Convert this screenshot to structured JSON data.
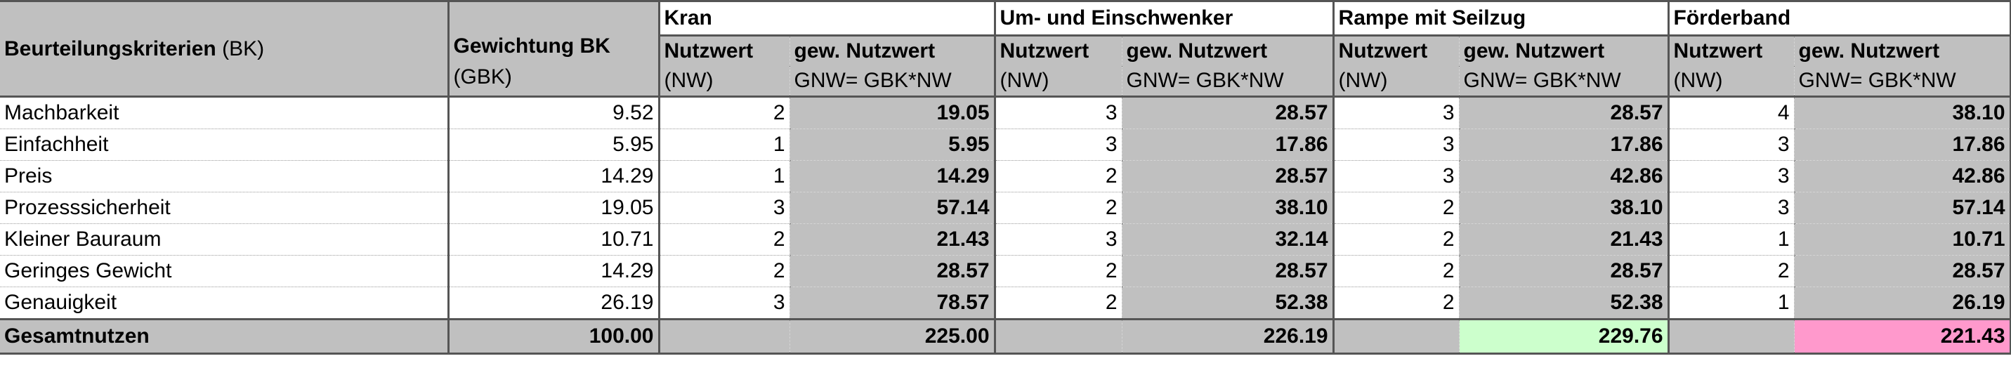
{
  "header": {
    "criteria_bold": "Beurteilungskriterien",
    "criteria_suffix": " (BK)",
    "weight_line1": "Gewichtung BK",
    "weight_line2": "(GBK)",
    "col_nw_line1": "Nutzwert",
    "col_nw_line2": "(NW)",
    "col_gnw_line1": "gew. Nutzwert",
    "col_gnw_line2": "GNW= GBK*NW"
  },
  "alternatives": [
    {
      "name": "Kran",
      "total": "225.00"
    },
    {
      "name": "Um- und Einschwenker",
      "total": "226.19"
    },
    {
      "name": "Rampe mit Seilzug",
      "total": "229.76"
    },
    {
      "name": "Förderband",
      "total": "221.43"
    }
  ],
  "rows": [
    {
      "criterion": "Machbarkeit",
      "weight": "9.52",
      "values": [
        [
          "2",
          "19.05"
        ],
        [
          "3",
          "28.57"
        ],
        [
          "3",
          "28.57"
        ],
        [
          "4",
          "38.10"
        ]
      ]
    },
    {
      "criterion": "Einfachheit",
      "weight": "5.95",
      "values": [
        [
          "1",
          "5.95"
        ],
        [
          "3",
          "17.86"
        ],
        [
          "3",
          "17.86"
        ],
        [
          "3",
          "17.86"
        ]
      ]
    },
    {
      "criterion": "Preis",
      "weight": "14.29",
      "values": [
        [
          "1",
          "14.29"
        ],
        [
          "2",
          "28.57"
        ],
        [
          "3",
          "42.86"
        ],
        [
          "3",
          "42.86"
        ]
      ]
    },
    {
      "criterion": "Prozesssicherheit",
      "weight": "19.05",
      "values": [
        [
          "3",
          "57.14"
        ],
        [
          "2",
          "38.10"
        ],
        [
          "2",
          "38.10"
        ],
        [
          "3",
          "57.14"
        ]
      ]
    },
    {
      "criterion": "Kleiner Bauraum",
      "weight": "10.71",
      "values": [
        [
          "2",
          "21.43"
        ],
        [
          "3",
          "32.14"
        ],
        [
          "2",
          "21.43"
        ],
        [
          "1",
          "10.71"
        ]
      ]
    },
    {
      "criterion": "Geringes Gewicht",
      "weight": "14.29",
      "values": [
        [
          "2",
          "28.57"
        ],
        [
          "2",
          "28.57"
        ],
        [
          "2",
          "28.57"
        ],
        [
          "2",
          "28.57"
        ]
      ]
    },
    {
      "criterion": "Genauigkeit",
      "weight": "26.19",
      "values": [
        [
          "3",
          "78.57"
        ],
        [
          "2",
          "52.38"
        ],
        [
          "2",
          "52.38"
        ],
        [
          "1",
          "26.19"
        ]
      ]
    }
  ],
  "total": {
    "label": "Gesamtnutzen",
    "weight": "100.00"
  },
  "colors": {
    "header_grey": "#c0c0c0",
    "best_total": "#ccffcc",
    "worst_total": "#ff99cc"
  }
}
